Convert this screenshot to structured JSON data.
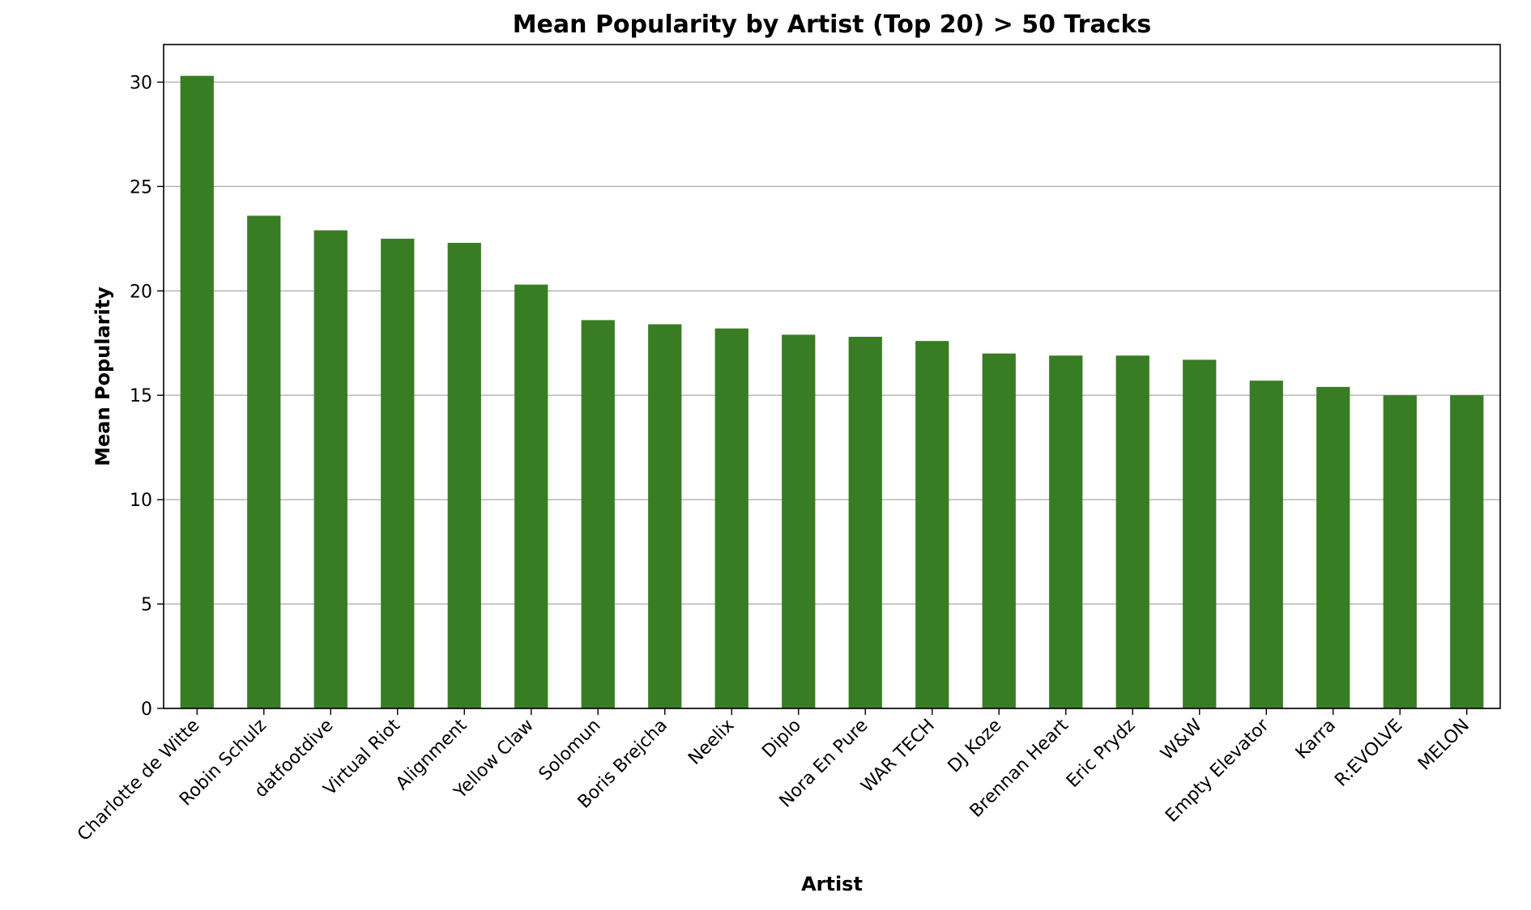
{
  "chart_data": {
    "type": "bar",
    "title": "Mean Popularity by Artist (Top 20) > 50 Tracks",
    "xlabel": "Artist",
    "ylabel": "Mean Popularity",
    "categories": [
      "Charlotte de Witte",
      "Robin Schulz",
      "datfootdive",
      "Virtual Riot",
      "Alignment",
      "Yellow Claw",
      "Solomun",
      "Boris Brejcha",
      "Neelix",
      "Diplo",
      "Nora En Pure",
      "WAR TECH",
      "DJ Koze",
      "Brennan Heart",
      "Eric Prydz",
      "W&W",
      "Empty Elevator",
      "Karra",
      "R:EVOLVE",
      "MELON"
    ],
    "values": [
      30.3,
      23.6,
      22.9,
      22.5,
      22.3,
      20.3,
      18.6,
      18.4,
      18.2,
      17.9,
      17.8,
      17.6,
      17.0,
      16.9,
      16.9,
      16.7,
      15.7,
      15.4,
      15.0,
      15.0
    ],
    "yticks": [
      0,
      5,
      10,
      15,
      20,
      25,
      30
    ],
    "ylim": [
      0,
      31.8
    ],
    "grid": "y",
    "bar_color": "#387d23",
    "grid_color": "#b0b0b0"
  }
}
